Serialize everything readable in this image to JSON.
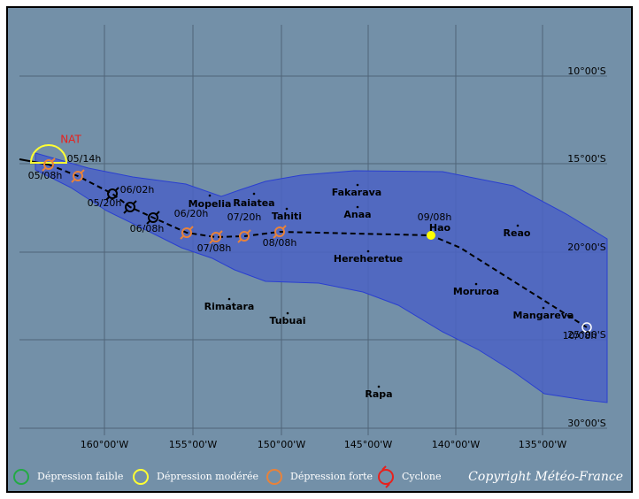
{
  "map": {
    "lat_labels": [
      "10°00'S",
      "15°00'S",
      "20°00'S",
      "25°00'S",
      "30°00'S"
    ],
    "lon_labels": [
      "160°00'W",
      "155°00'W",
      "150°00'W",
      "145°00'W",
      "140°00'W",
      "135°00'W"
    ],
    "places": [
      "Fakarava",
      "Anaa",
      "Mopelia",
      "Raiatea",
      "Tahiti",
      "Hao",
      "Reao",
      "Hereheretue",
      "Moruroa",
      "Rimatara",
      "Tubuai",
      "Mangareva",
      "Rapa"
    ],
    "track_labels": [
      "05/14h",
      "05/08h",
      "06/02h",
      "05/20h",
      "06/08h",
      "06/20h",
      "07/20h",
      "07/08h",
      "08/08h",
      "09/08h",
      "10/08h"
    ],
    "storm_name": "NAT"
  },
  "legend": {
    "items": [
      "Dépression faible",
      "Dépression modérée",
      "Dépression forte",
      "Cyclone"
    ],
    "copyright": "Copyright Météo-France"
  }
}
